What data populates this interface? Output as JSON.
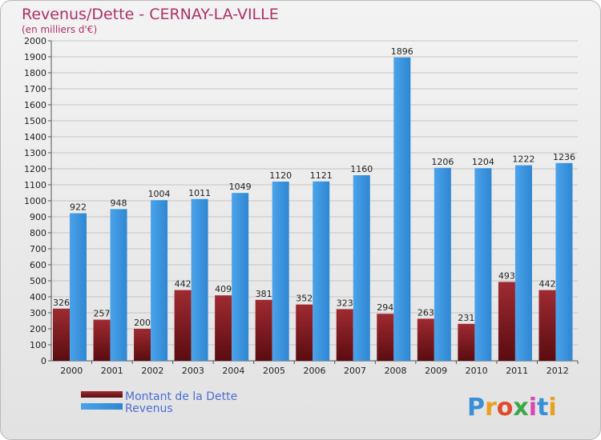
{
  "chart_data": {
    "type": "bar",
    "title": "Revenus/Dette - CERNAY-LA-VILLE",
    "subtitle": "(en milliers d'€)",
    "categories": [
      "2000",
      "2001",
      "2002",
      "2003",
      "2004",
      "2005",
      "2006",
      "2007",
      "2008",
      "2009",
      "2010",
      "2011",
      "2012"
    ],
    "series": [
      {
        "name": "Montant de la Dette",
        "color": "#8b1a1f",
        "values": [
          326,
          257,
          200,
          442,
          409,
          381,
          352,
          323,
          294,
          263,
          231,
          493,
          442
        ]
      },
      {
        "name": "Revenus",
        "color": "#3d93dc",
        "values": [
          922,
          948,
          1004,
          1011,
          1049,
          1120,
          1121,
          1160,
          1896,
          1206,
          1204,
          1222,
          1236
        ]
      }
    ],
    "ylim": [
      0,
      2000
    ],
    "ytick_step": 100,
    "grid": true,
    "legend_position": "bottom-left"
  },
  "logo_text": "Proxiti",
  "logo_letter_colors": [
    "#3a8fd8",
    "#e8a020",
    "#e04a2a",
    "#3aa848",
    "#d848b0",
    "#3a8fd8",
    "#e8a020"
  ]
}
